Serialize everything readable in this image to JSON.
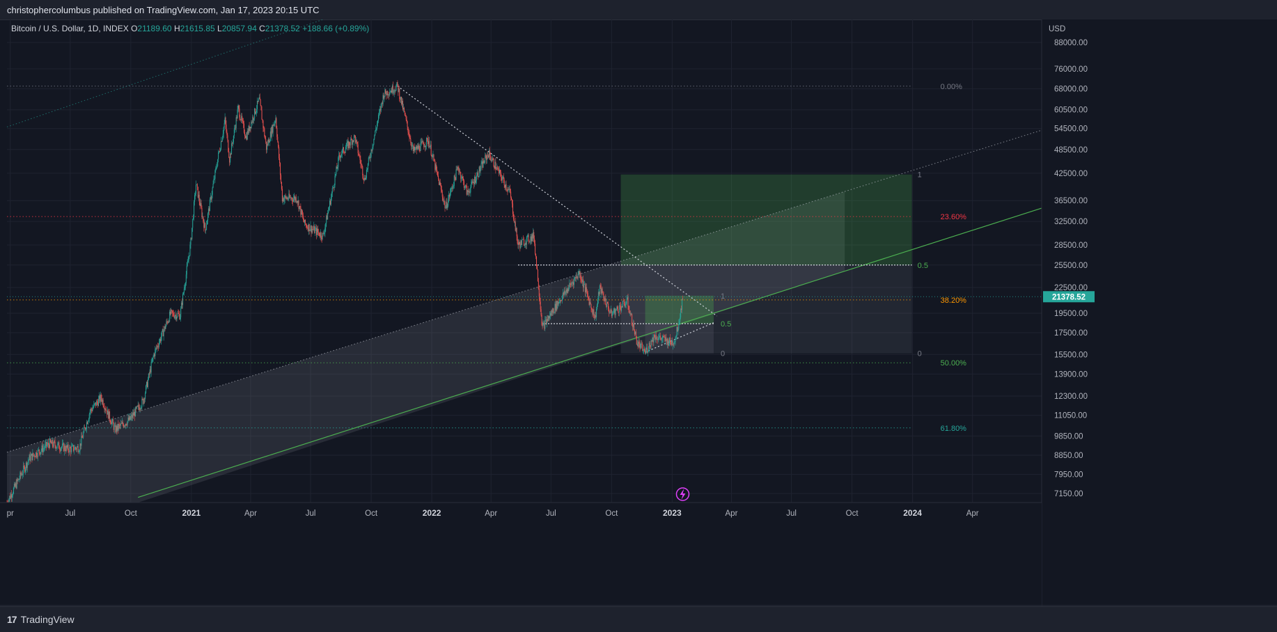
{
  "header": {
    "publisher_line": "christophercolumbus published on TradingView.com, Jan 17, 2023 20:15 UTC"
  },
  "legend": {
    "symbol": "Bitcoin / U.S. Dollar, 1D, INDEX",
    "o_label": "O",
    "o": "21189.60",
    "h_label": "H",
    "h": "21615.85",
    "l_label": "L",
    "l": "20857.94",
    "c_label": "C",
    "c": "21378.52",
    "change": "+188.66 (+0.89%)"
  },
  "footer": {
    "brand": "TradingView",
    "logo_text": "17"
  },
  "colors": {
    "background": "#131722",
    "up": "#26a69a",
    "down": "#ef5350",
    "green_line": "#4caf50",
    "fib_orange": "#ff9800",
    "fib_red": "#f23645",
    "fib_green": "#4caf50",
    "fib_teal": "#26a69a",
    "fib_gray": "#787b86",
    "price_tag": "#26a69a",
    "lightning": "#e040fb"
  },
  "chart_data": {
    "type": "candlestick",
    "symbol": "Bitcoin / U.S. Dollar",
    "interval": "1D",
    "y_scale": "log",
    "y_axis_currency": "USD",
    "ylim": [
      6800,
      100000
    ],
    "x_range": [
      "2020-03-27",
      "2024-07-15"
    ],
    "x_ticks": [
      {
        "date": "2020-04-01",
        "label": "pr"
      },
      {
        "date": "2020-07-01",
        "label": "Jul"
      },
      {
        "date": "2020-10-01",
        "label": "Oct"
      },
      {
        "date": "2021-01-01",
        "label": "2021",
        "year": true
      },
      {
        "date": "2021-04-01",
        "label": "Apr"
      },
      {
        "date": "2021-07-01",
        "label": "Jul"
      },
      {
        "date": "2021-10-01",
        "label": "Oct"
      },
      {
        "date": "2022-01-01",
        "label": "2022",
        "year": true
      },
      {
        "date": "2022-04-01",
        "label": "Apr"
      },
      {
        "date": "2022-07-01",
        "label": "Jul"
      },
      {
        "date": "2022-10-01",
        "label": "Oct"
      },
      {
        "date": "2023-01-01",
        "label": "2023",
        "year": true
      },
      {
        "date": "2023-04-01",
        "label": "Apr"
      },
      {
        "date": "2023-07-01",
        "label": "Jul"
      },
      {
        "date": "2023-10-01",
        "label": "Oct"
      },
      {
        "date": "2024-01-01",
        "label": "2024",
        "year": true
      },
      {
        "date": "2024-04-01",
        "label": "Apr"
      }
    ],
    "y_ticks": [
      "88000.00",
      "76000.00",
      "68000.00",
      "60500.00",
      "54500.00",
      "48500.00",
      "42500.00",
      "36500.00",
      "32500.00",
      "28500.00",
      "25500.00",
      "22500.00",
      "19500.00",
      "17500.00",
      "15500.00",
      "13900.00",
      "12300.00",
      "11050.00",
      "9850.00",
      "8850.00",
      "7950.00",
      "7150.00"
    ],
    "last_price": "21378.52",
    "price_path": [
      [
        "2020-03-27",
        6800
      ],
      [
        "2020-04-30",
        8700
      ],
      [
        "2020-05-31",
        9450
      ],
      [
        "2020-06-30",
        9150
      ],
      [
        "2020-07-15",
        9250
      ],
      [
        "2020-07-31",
        11300
      ],
      [
        "2020-08-17",
        12200
      ],
      [
        "2020-09-07",
        10200
      ],
      [
        "2020-09-30",
        10800
      ],
      [
        "2020-10-20",
        12000
      ],
      [
        "2020-11-05",
        15500
      ],
      [
        "2020-11-30",
        19400
      ],
      [
        "2020-12-15",
        19300
      ],
      [
        "2020-12-31",
        28900
      ],
      [
        "2021-01-08",
        40000
      ],
      [
        "2021-01-22",
        31000
      ],
      [
        "2021-02-10",
        46000
      ],
      [
        "2021-02-21",
        57000
      ],
      [
        "2021-02-28",
        46000
      ],
      [
        "2021-03-13",
        61000
      ],
      [
        "2021-03-25",
        52000
      ],
      [
        "2021-04-14",
        64000
      ],
      [
        "2021-04-25",
        49000
      ],
      [
        "2021-05-09",
        58000
      ],
      [
        "2021-05-19",
        37000
      ],
      [
        "2021-06-10",
        37000
      ],
      [
        "2021-06-22",
        32000
      ],
      [
        "2021-07-20",
        30000
      ],
      [
        "2021-08-14",
        47000
      ],
      [
        "2021-09-06",
        52000
      ],
      [
        "2021-09-21",
        41000
      ],
      [
        "2021-10-20",
        66000
      ],
      [
        "2021-11-10",
        69000
      ],
      [
        "2021-12-04",
        48000
      ],
      [
        "2021-12-27",
        51000
      ],
      [
        "2022-01-22",
        35000
      ],
      [
        "2022-02-10",
        44000
      ],
      [
        "2022-02-24",
        38000
      ],
      [
        "2022-03-28",
        47500
      ],
      [
        "2022-04-30",
        38000
      ],
      [
        "2022-05-12",
        28500
      ],
      [
        "2022-06-05",
        30000
      ],
      [
        "2022-06-18",
        18000
      ],
      [
        "2022-07-10",
        20500
      ],
      [
        "2022-08-13",
        24500
      ],
      [
        "2022-09-06",
        19000
      ],
      [
        "2022-09-13",
        22500
      ],
      [
        "2022-09-30",
        19400
      ],
      [
        "2022-10-25",
        20800
      ],
      [
        "2022-11-09",
        16500
      ],
      [
        "2022-11-21",
        15700
      ],
      [
        "2022-12-05",
        17200
      ],
      [
        "2022-12-31",
        16550
      ],
      [
        "2023-01-05",
        16800
      ],
      [
        "2023-01-12",
        18900
      ],
      [
        "2023-01-17",
        21378
      ]
    ],
    "drawings": {
      "ascending_channel_upper": [
        [
          "2020-03-27",
          9000
        ],
        [
          "2024-07-15",
          54000
        ]
      ],
      "ascending_channel_lower": [
        [
          "2020-10-12",
          7000
        ],
        [
          "2024-07-15",
          35000
        ]
      ],
      "outer_upper_line": [
        [
          "2020-03-27",
          55000
        ],
        [
          "2021-07-20",
          100000
        ]
      ],
      "descending_trendline": [
        [
          "2021-11-10",
          69000
        ],
        [
          "2023-03-10",
          19200
        ]
      ],
      "wedge_lower_line": [
        [
          "2022-11-21",
          15700
        ],
        [
          "2023-03-05",
          18500
        ]
      ],
      "horizontal_level_25500": {
        "from": "2022-05-12",
        "to": "2023-12-31",
        "price": 25500
      },
      "horizontal_level_18400": {
        "from": "2022-06-18",
        "to": "2023-03-05",
        "price": 18400
      }
    },
    "fib_retracement": {
      "extends_to": "2023-12-31",
      "levels": [
        {
          "label": "0.00%",
          "price": 69000,
          "color_key": "fib_gray"
        },
        {
          "label": "23.60%",
          "price": 33400,
          "color_key": "fib_red"
        },
        {
          "label": "38.20%",
          "price": 21000,
          "color_key": "fib_orange"
        },
        {
          "label": "50.00%",
          "price": 14800,
          "color_key": "fib_green"
        },
        {
          "label": "61.80%",
          "price": 10300,
          "color_key": "fib_teal"
        }
      ]
    },
    "projection_box_large": {
      "from": "2022-10-15",
      "to": "2023-12-31",
      "top": 42200,
      "mid": 25500,
      "bottom": 15600,
      "labels": {
        "top": "1",
        "mid": "0.5",
        "bottom": "0"
      }
    },
    "projection_box_small": {
      "from": "2022-11-21",
      "to": "2023-03-05",
      "top": 21500,
      "mid": 18400,
      "bottom": 15600,
      "labels": {
        "top": "1",
        "mid": "0.5",
        "bottom": "0"
      }
    }
  }
}
